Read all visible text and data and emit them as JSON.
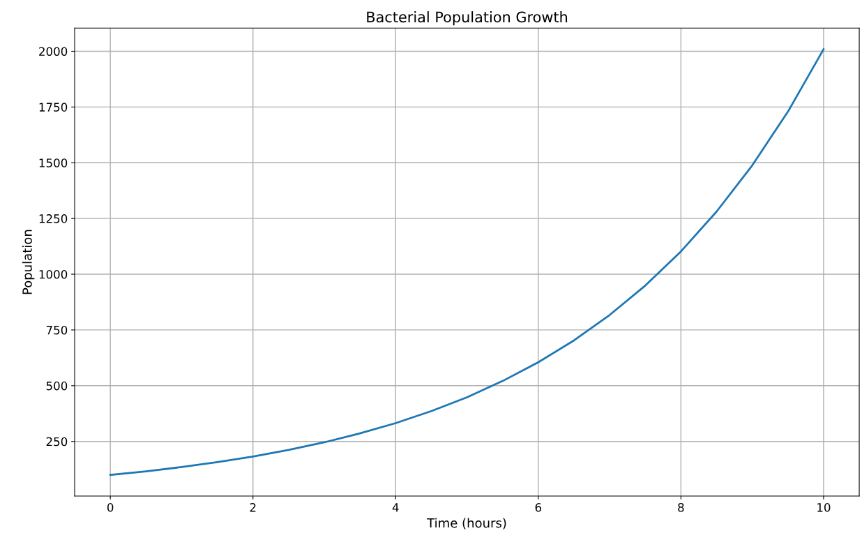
{
  "chart_data": {
    "type": "line",
    "title": "Bacterial Population Growth",
    "xlabel": "Time (hours)",
    "ylabel": "Population",
    "x": [
      0,
      0.5,
      1,
      1.5,
      2,
      2.5,
      3,
      3.5,
      4,
      4.5,
      5,
      5.5,
      6,
      6.5,
      7,
      7.5,
      8,
      8.5,
      9,
      9.5,
      10
    ],
    "series": [
      {
        "color": "#1f77b4",
        "values": [
          100,
          116,
          135,
          157,
          182,
          212,
          246,
          286,
          332,
          386,
          448,
          521,
          605,
          703,
          817,
          949,
          1102,
          1281,
          1488,
          1729,
          2009
        ]
      }
    ],
    "xlim": [
      -0.5,
      10.5
    ],
    "xticks": [
      0,
      2,
      4,
      6,
      8,
      10
    ],
    "ylim": [
      5,
      2104
    ],
    "yticks": [
      250,
      500,
      750,
      1000,
      1250,
      1500,
      1750,
      2000
    ],
    "grid": true,
    "marker": "none",
    "line_style": "solid"
  }
}
